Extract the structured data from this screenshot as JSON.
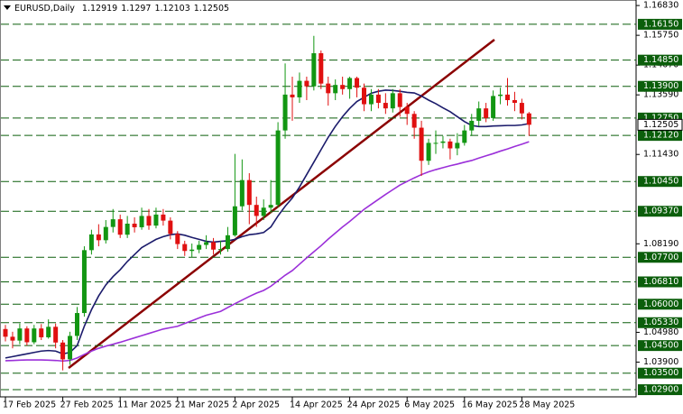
{
  "chart_data": {
    "type": "candlestick",
    "title": "EURUSD,Daily",
    "categories": [
      "17 Feb 2025",
      null,
      null,
      null,
      null,
      null,
      null,
      null,
      "27 Feb 2025",
      null,
      null,
      null,
      null,
      null,
      null,
      null,
      "11 Mar 2025",
      null,
      null,
      null,
      null,
      null,
      null,
      null,
      "21 Mar 2025",
      null,
      null,
      null,
      null,
      null,
      null,
      null,
      "2 Apr 2025",
      null,
      null,
      null,
      null,
      null,
      null,
      null,
      "14 Apr 2025",
      null,
      null,
      null,
      null,
      null,
      null,
      null,
      "24 Apr 2025",
      null,
      null,
      null,
      null,
      null,
      null,
      null,
      "6 May 2025",
      null,
      null,
      null,
      null,
      null,
      null,
      null,
      "16 May 2025",
      null,
      null,
      null,
      null,
      null,
      null,
      null,
      "28 May 2025",
      null
    ],
    "open": [
      1.051,
      1.0482,
      1.0468,
      1.0512,
      1.0462,
      1.0512,
      1.048,
      1.0518,
      1.0461,
      1.04,
      1.0485,
      1.0568,
      1.0796,
      1.0853,
      1.0832,
      1.088,
      1.0908,
      1.0852,
      1.0892,
      1.0879,
      1.092,
      1.0885,
      1.0925,
      1.0903,
      1.0855,
      1.0818,
      1.0793,
      1.0798,
      1.0815,
      1.0825,
      1.0798,
      1.08,
      1.085,
      1.0955,
      1.105,
      1.096,
      1.092,
      1.095,
      1.096,
      1.123,
      1.136,
      1.135,
      1.141,
      1.139,
      1.151,
      1.14,
      1.1365,
      1.1395,
      1.138,
      1.142,
      1.1385,
      1.1325,
      1.136,
      1.133,
      1.131,
      1.1365,
      1.1315,
      1.129,
      1.124,
      1.112,
      1.1185,
      1.1185,
      1.119,
      1.1165,
      1.1185,
      1.123,
      1.1265,
      1.131,
      1.1275,
      1.1355,
      1.136,
      1.134,
      1.133,
      1.12919
    ],
    "high": [
      1.0525,
      1.05,
      1.053,
      1.052,
      1.0525,
      1.0528,
      1.0545,
      1.053,
      1.047,
      1.05,
      1.059,
      1.081,
      1.087,
      1.089,
      1.0905,
      1.0945,
      1.0925,
      1.092,
      1.0915,
      1.095,
      1.0945,
      1.095,
      1.0945,
      1.0915,
      1.0865,
      1.083,
      1.082,
      1.083,
      1.085,
      1.084,
      1.083,
      1.088,
      1.1145,
      1.1125,
      1.1075,
      1.099,
      1.098,
      1.105,
      1.126,
      1.1473,
      1.1425,
      1.144,
      1.1425,
      1.1573,
      1.152,
      1.1425,
      1.1415,
      1.1425,
      1.1425,
      1.1425,
      1.14,
      1.138,
      1.138,
      1.1365,
      1.138,
      1.138,
      1.133,
      1.13,
      1.1265,
      1.12,
      1.123,
      1.121,
      1.12,
      1.122,
      1.125,
      1.129,
      1.1335,
      1.133,
      1.1375,
      1.1385,
      1.142,
      1.137,
      1.1345,
      1.1297
    ],
    "low": [
      1.0465,
      1.044,
      1.0455,
      1.045,
      1.0455,
      1.047,
      1.0475,
      1.044,
      1.036,
      1.038,
      1.047,
      1.0555,
      1.078,
      1.081,
      1.082,
      1.086,
      1.084,
      1.084,
      1.086,
      1.087,
      1.087,
      1.0875,
      1.0885,
      1.0835,
      1.08,
      1.0775,
      1.077,
      1.0785,
      1.08,
      1.078,
      1.078,
      1.079,
      1.0845,
      1.094,
      1.089,
      1.088,
      1.0905,
      1.093,
      1.095,
      1.12,
      1.1265,
      1.133,
      1.134,
      1.1375,
      1.138,
      1.132,
      1.134,
      1.136,
      1.1345,
      1.135,
      1.13,
      1.13,
      1.131,
      1.129,
      1.1295,
      1.128,
      1.125,
      1.12,
      1.1065,
      1.1105,
      1.1145,
      1.1165,
      1.1125,
      1.114,
      1.1175,
      1.121,
      1.1245,
      1.126,
      1.1265,
      1.1325,
      1.132,
      1.13,
      1.127,
      1.12103
    ],
    "close": [
      1.0482,
      1.0468,
      1.0512,
      1.0462,
      1.0512,
      1.048,
      1.0518,
      1.0461,
      1.04,
      1.0485,
      1.0568,
      1.0796,
      1.0853,
      1.0832,
      1.088,
      1.0908,
      1.0852,
      1.0892,
      1.0879,
      1.092,
      1.0885,
      1.0925,
      1.0903,
      1.0855,
      1.0818,
      1.0793,
      1.0798,
      1.0815,
      1.0825,
      1.0798,
      1.08,
      1.085,
      1.0955,
      1.105,
      1.096,
      1.092,
      1.095,
      1.096,
      1.123,
      1.136,
      1.135,
      1.141,
      1.139,
      1.151,
      1.14,
      1.1365,
      1.1395,
      1.138,
      1.142,
      1.1385,
      1.1325,
      1.136,
      1.133,
      1.131,
      1.1365,
      1.1315,
      1.129,
      1.124,
      1.112,
      1.1185,
      1.1185,
      1.119,
      1.1165,
      1.1185,
      1.123,
      1.1265,
      1.131,
      1.1275,
      1.1355,
      1.136,
      1.134,
      1.133,
      1.12919,
      1.12505
    ],
    "up_color": "#129612",
    "down_color": "#e01010",
    "series": [
      {
        "color": "#1b1b6b",
        "values": [
          1.0405,
          1.041,
          1.0415,
          1.042,
          1.0425,
          1.043,
          1.0432,
          1.043,
          1.042,
          1.0425,
          1.045,
          1.052,
          1.058,
          1.063,
          1.067,
          1.07,
          1.0725,
          1.0755,
          1.078,
          1.0805,
          1.082,
          1.0835,
          1.0845,
          1.0852,
          1.0855,
          1.085,
          1.0842,
          1.0835,
          1.0828,
          1.0825,
          1.0828,
          1.083,
          1.0835,
          1.0845,
          1.0852,
          1.0855,
          1.086,
          1.088,
          1.092,
          1.0955,
          1.0985,
          1.1025,
          1.107,
          1.1115,
          1.116,
          1.1205,
          1.1245,
          1.128,
          1.131,
          1.1335,
          1.135,
          1.1365,
          1.1372,
          1.1376,
          1.1375,
          1.1372,
          1.1368,
          1.1366,
          1.1355,
          1.134,
          1.1327,
          1.1312,
          1.1298,
          1.128,
          1.1262,
          1.1248,
          1.1244,
          1.1244,
          1.1246,
          1.1247,
          1.1248,
          1.1248,
          1.125,
          1.1255
        ]
      },
      {
        "color": "#9b30d9",
        "values": [
          1.0395,
          1.0396,
          1.0397,
          1.0398,
          1.0398,
          1.0398,
          1.0397,
          1.0396,
          1.0394,
          1.0396,
          1.0405,
          1.0418,
          1.043,
          1.044,
          1.0448,
          1.0455,
          1.0462,
          1.047,
          1.0478,
          1.0486,
          1.0494,
          1.0502,
          1.051,
          1.0515,
          1.052,
          1.053,
          1.054,
          1.055,
          1.056,
          1.0567,
          1.0574,
          1.0588,
          1.0602,
          1.0615,
          1.0628,
          1.064,
          1.065,
          1.0665,
          1.0685,
          1.0705,
          1.0722,
          1.0745,
          1.0768,
          1.079,
          1.0812,
          1.0836,
          1.0858,
          1.088,
          1.09,
          1.0922,
          1.0944,
          1.0962,
          1.098,
          1.0998,
          1.1015,
          1.1032,
          1.1045,
          1.1058,
          1.107,
          1.108,
          1.1088,
          1.1095,
          1.1102,
          1.1108,
          1.1115,
          1.1121,
          1.113,
          1.1138,
          1.1146,
          1.1155,
          1.1163,
          1.1172,
          1.118,
          1.1189
        ]
      }
    ],
    "ylim": [
      1.0264,
      1.1703
    ],
    "yticks": [
      {
        "value": 1.1683,
        "label": "1.16830"
      },
      {
        "value": 1.1575,
        "label": "1.15750"
      },
      {
        "value": 1.1467,
        "label": "1.14670"
      },
      {
        "value": 1.1359,
        "label": "1.13590"
      },
      {
        "value": 1.1143,
        "label": "1.11430"
      },
      {
        "value": 1.0819,
        "label": "1.08190"
      },
      {
        "value": 1.0498,
        "label": "1.04980"
      },
      {
        "value": 1.039,
        "label": "1.03900"
      }
    ],
    "levels": [
      {
        "value": 1.1615,
        "label": "1.16150"
      },
      {
        "value": 1.1485,
        "label": "1.14850"
      },
      {
        "value": 1.139,
        "label": "1.13900"
      },
      {
        "value": 1.1275,
        "label": "1.12750"
      },
      {
        "value": 1.1212,
        "label": "1.12120"
      },
      {
        "value": 1.1045,
        "label": "1.10450"
      },
      {
        "value": 1.0937,
        "label": "1.09370"
      },
      {
        "value": 1.077,
        "label": "1.07700"
      },
      {
        "value": 1.0681,
        "label": "1.06810"
      },
      {
        "value": 1.06,
        "label": "1.06000"
      },
      {
        "value": 1.0533,
        "label": "1.05330"
      },
      {
        "value": 1.045,
        "label": "1.04500"
      },
      {
        "value": 1.035,
        "label": "1.03500"
      },
      {
        "value": 1.029,
        "label": "1.02900"
      }
    ],
    "level_color": "#0b5e0b"
  }
}
